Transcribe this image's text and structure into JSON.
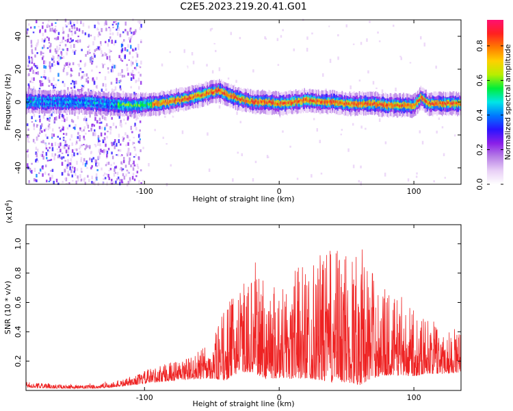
{
  "title": "C2E5.2023.219.20.41.G01",
  "chart_data": [
    {
      "type": "heatmap",
      "xlabel": "Height of straight line (km)",
      "ylabel": "Frequency (Hz)",
      "xlim": [
        -188,
        135
      ],
      "ylim": [
        -50,
        50
      ],
      "xticks": [
        -100,
        0,
        100
      ],
      "yticks": [
        -40,
        -20,
        0,
        20,
        40
      ],
      "xtick_labels": [
        "-100",
        "0",
        "100"
      ],
      "ytick_labels": [
        "-40",
        "-20",
        "0",
        "20",
        "40"
      ],
      "ridge": {
        "x": [
          -188,
          -170,
          -150,
          -130,
          -110,
          -90,
          -70,
          -55,
          -45,
          -38,
          -30,
          -20,
          -10,
          0,
          10,
          20,
          30,
          40,
          50,
          60,
          70,
          80,
          90,
          100,
          105,
          110,
          120,
          135
        ],
        "y": [
          0,
          0,
          0,
          -1,
          -2,
          -1,
          2,
          5,
          7,
          4,
          2,
          0,
          0,
          -1,
          0,
          1,
          0,
          0,
          -1,
          -1,
          -1,
          -2,
          -2,
          -2,
          3,
          -1,
          -1,
          -1
        ]
      },
      "noise_region_x": [
        -188,
        -103
      ],
      "colorbar": {
        "label": "Normalized spectral amplitude",
        "range": [
          0,
          0.95
        ],
        "ticks": [
          0.0,
          0.2,
          0.4,
          0.6,
          0.8
        ],
        "tick_labels": [
          "0.0",
          "0.2",
          "0.4",
          "0.6",
          "0.8"
        ],
        "colors": [
          "#ffffff",
          "#e8cff6",
          "#b77fe6",
          "#8a1fe8",
          "#2a14ff",
          "#0078ff",
          "#00e6e6",
          "#00ee3a",
          "#b8ee00",
          "#ffd000",
          "#ff7a00",
          "#ff2020",
          "#ff1070"
        ]
      }
    },
    {
      "type": "line",
      "xlabel": "Height of straight line (km)",
      "ylabel": "SNR (10 * v/v)",
      "yscale_label": "(x10",
      "yscale_exp": "4",
      "yscale_close": ")",
      "xlim": [
        -188,
        135
      ],
      "ylim": [
        0,
        1.13
      ],
      "xticks": [
        -100,
        0,
        100
      ],
      "yticks": [
        0.2,
        0.4,
        0.6,
        0.8,
        1.0
      ],
      "xtick_labels": [
        "-100",
        "0",
        "100"
      ],
      "ytick_labels": [
        "0.2",
        "0.4",
        "0.6",
        "0.8",
        "1.0"
      ],
      "line_color": "#ee2222",
      "envelope": {
        "x": [
          -188,
          -160,
          -140,
          -125,
          -110,
          -95,
          -80,
          -65,
          -50,
          -40,
          -30,
          -20,
          -10,
          0,
          10,
          20,
          30,
          40,
          50,
          60,
          70,
          80,
          90,
          100,
          110,
          120,
          135
        ],
        "base": [
          0.03,
          0.02,
          0.02,
          0.03,
          0.05,
          0.08,
          0.1,
          0.12,
          0.15,
          0.2,
          0.28,
          0.3,
          0.26,
          0.26,
          0.28,
          0.3,
          0.3,
          0.3,
          0.3,
          0.3,
          0.28,
          0.26,
          0.24,
          0.22,
          0.22,
          0.2,
          0.2
        ],
        "amp": [
          0.03,
          0.02,
          0.02,
          0.03,
          0.04,
          0.08,
          0.1,
          0.12,
          0.2,
          0.38,
          0.45,
          0.5,
          0.52,
          0.5,
          0.58,
          0.62,
          0.66,
          0.7,
          0.7,
          0.75,
          0.55,
          0.45,
          0.4,
          0.35,
          0.3,
          0.25,
          0.22
        ]
      }
    }
  ]
}
